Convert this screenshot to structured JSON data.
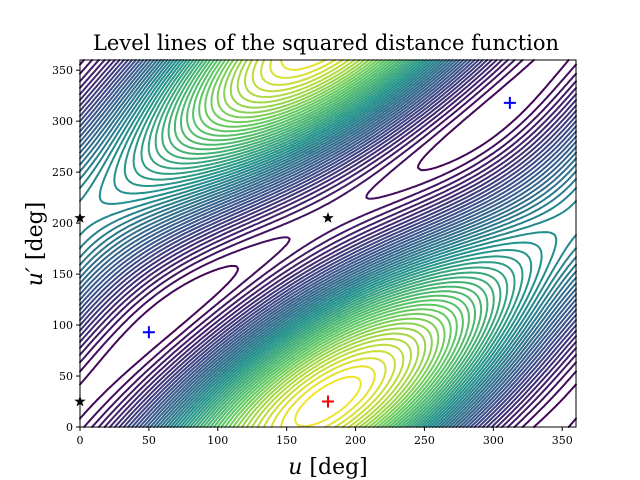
{
  "chart_data": {
    "type": "contour",
    "title": "Level lines of the squared distance function",
    "xlabel_var": "u",
    "xlabel_unit": " [deg]",
    "ylabel_var": "u′",
    "ylabel_unit": " [deg]",
    "xlim": [
      0,
      360
    ],
    "ylim": [
      0,
      360
    ],
    "xticks": [
      0,
      50,
      100,
      150,
      200,
      250,
      300,
      350
    ],
    "yticks": [
      0,
      50,
      100,
      150,
      200,
      250,
      300,
      350
    ],
    "colormap": "viridis",
    "num_levels": 50,
    "markers": [
      {
        "name": "minimum",
        "symbol": "+",
        "color": "#0000ff",
        "x": 50,
        "y": 93
      },
      {
        "name": "minimum",
        "symbol": "+",
        "color": "#0000ff",
        "x": 312,
        "y": 318
      },
      {
        "name": "maximum",
        "symbol": "+",
        "color": "#ff0000",
        "x": 180,
        "y": 25
      },
      {
        "name": "saddle",
        "symbol": "*",
        "color": "#000000",
        "x": 180,
        "y": 205
      },
      {
        "name": "saddle",
        "symbol": "*",
        "color": "#000000",
        "x": 0,
        "y": 205
      },
      {
        "name": "saddle",
        "symbol": "*",
        "color": "#000000",
        "x": 0,
        "y": 25
      }
    ]
  }
}
